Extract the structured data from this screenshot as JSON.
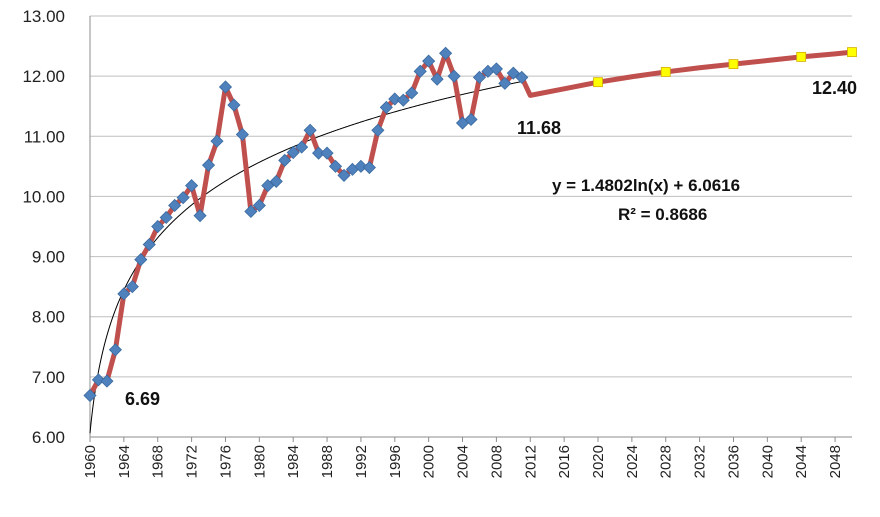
{
  "chart_data": {
    "type": "line",
    "ylim": [
      6,
      13
    ],
    "xlim": [
      1960,
      2050
    ],
    "y_ticks": [
      "6.00",
      "7.00",
      "8.00",
      "9.00",
      "10.00",
      "11.00",
      "12.00",
      "13.00"
    ],
    "x_ticks": [
      "1960",
      "1964",
      "1968",
      "1972",
      "1976",
      "1980",
      "1984",
      "1988",
      "1992",
      "1996",
      "2000",
      "2004",
      "2008",
      "2012",
      "2016",
      "2020",
      "2024",
      "2028",
      "2032",
      "2036",
      "2040",
      "2044",
      "2048"
    ],
    "grid": "horizontal",
    "colors": {
      "line": "#C0504D",
      "historical_marker": "#4F81BD",
      "projection_marker": "#FFFF00",
      "trend": "#000000",
      "grid": "#BFBFBF"
    },
    "series": [
      {
        "x": [
          1960,
          1961,
          1962,
          1963,
          1964,
          1965,
          1966,
          1967,
          1968,
          1969,
          1970,
          1971,
          1972,
          1973,
          1974,
          1975,
          1976,
          1977,
          1978,
          1979,
          1980,
          1981,
          1982,
          1983,
          1984,
          1985,
          1986,
          1987,
          1988,
          1989,
          1990,
          1991,
          1992,
          1993,
          1994,
          1995,
          1996,
          1997,
          1998,
          1999,
          2000,
          2001,
          2002,
          2003,
          2004,
          2005,
          2006,
          2007,
          2008,
          2009,
          2010,
          2011
        ],
        "values": [
          6.69,
          6.95,
          6.93,
          7.45,
          8.38,
          8.5,
          8.95,
          9.2,
          9.5,
          9.65,
          9.85,
          9.98,
          10.18,
          9.68,
          10.52,
          10.92,
          11.82,
          11.52,
          11.03,
          9.75,
          9.85,
          10.18,
          10.25,
          10.6,
          10.73,
          10.82,
          11.1,
          10.72,
          10.72,
          10.5,
          10.35,
          10.45,
          10.5,
          10.48,
          11.1,
          11.48,
          11.62,
          11.6,
          11.72,
          12.08,
          12.25,
          11.95,
          12.38,
          12.0,
          11.22,
          11.28,
          11.98,
          12.08,
          12.12,
          11.88,
          12.05,
          11.98
        ]
      },
      {
        "x": [
          2012,
          2016,
          2020,
          2024,
          2028,
          2032,
          2036,
          2040,
          2044,
          2048,
          2050
        ],
        "values": [
          11.68,
          11.79,
          11.9,
          11.99,
          12.07,
          12.14,
          12.2,
          12.26,
          12.32,
          12.37,
          12.4
        ]
      }
    ],
    "trendline": {
      "equation": "y = 1.4802ln(x) + 6.0616",
      "r2": "R² = 0.8686",
      "a": 1.4802,
      "b": 6.0616
    },
    "annotations": {
      "start": "6.69",
      "mid": "11.68",
      "end": "12.40"
    }
  }
}
